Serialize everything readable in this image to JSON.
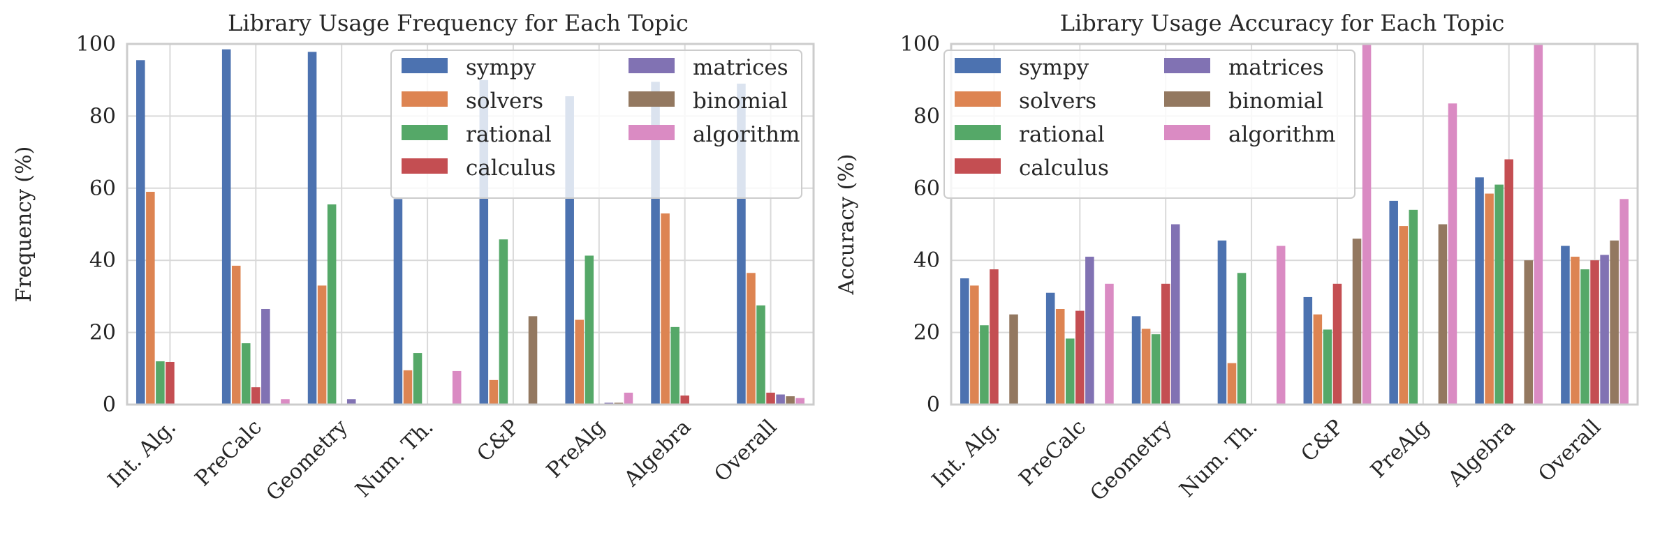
{
  "chart_data": [
    {
      "type": "bar",
      "title": "Library Usage Frequency for Each Topic",
      "xlabel": "",
      "ylabel": "Frequency (%)",
      "ylim": [
        0,
        100
      ],
      "yticks": [
        "0",
        "20",
        "40",
        "60",
        "80",
        "100"
      ],
      "grid": true,
      "legend_placement": "top-right",
      "categories": [
        "Int. Alg.",
        "PreCalc",
        "Geometry",
        "Num. Th.",
        "C&P",
        "PreAlg",
        "Algebra",
        "Overall"
      ],
      "series": [
        {
          "name": "sympy",
          "color": "#4c72b0",
          "values": [
            95.5,
            98.5,
            97.8,
            57.0,
            90.0,
            85.5,
            89.5,
            89.0
          ]
        },
        {
          "name": "solvers",
          "color": "#dd8452",
          "values": [
            59.0,
            38.5,
            33.0,
            9.5,
            6.8,
            23.5,
            53.0,
            36.5
          ]
        },
        {
          "name": "rational",
          "color": "#55a868",
          "values": [
            12.0,
            17.0,
            55.5,
            14.3,
            45.8,
            41.3,
            21.5,
            27.5
          ]
        },
        {
          "name": "calculus",
          "color": "#c44e52",
          "values": [
            11.8,
            4.8,
            0,
            0,
            0,
            0,
            2.5,
            3.3
          ]
        },
        {
          "name": "matrices",
          "color": "#8172b3",
          "values": [
            0,
            26.5,
            1.5,
            0,
            0,
            0.5,
            0,
            2.8
          ]
        },
        {
          "name": "binomial",
          "color": "#937860",
          "values": [
            0,
            0,
            0,
            0,
            24.5,
            0.5,
            0,
            2.3
          ]
        },
        {
          "name": "algorithm",
          "color": "#da8bc3",
          "values": [
            0,
            1.5,
            0,
            9.3,
            0,
            3.3,
            0,
            1.8
          ]
        }
      ]
    },
    {
      "type": "bar",
      "title": "Library Usage Accuracy for Each Topic",
      "xlabel": "",
      "ylabel": "Accuracy (%)",
      "ylim": [
        0,
        100
      ],
      "yticks": [
        "0",
        "20",
        "40",
        "60",
        "80",
        "100"
      ],
      "grid": true,
      "legend_placement": "top-left",
      "categories": [
        "Int. Alg.",
        "PreCalc",
        "Geometry",
        "Num. Th.",
        "C&P",
        "PreAlg",
        "Algebra",
        "Overall"
      ],
      "series": [
        {
          "name": "sympy",
          "color": "#4c72b0",
          "values": [
            35.0,
            31.0,
            24.5,
            45.5,
            29.8,
            56.5,
            63.0,
            44.0
          ]
        },
        {
          "name": "solvers",
          "color": "#dd8452",
          "values": [
            33.0,
            26.5,
            21.0,
            11.5,
            25.0,
            49.5,
            58.5,
            41.0
          ]
        },
        {
          "name": "rational",
          "color": "#55a868",
          "values": [
            22.0,
            18.3,
            19.5,
            36.5,
            20.8,
            54.0,
            61.0,
            37.5
          ]
        },
        {
          "name": "calculus",
          "color": "#c44e52",
          "values": [
            37.5,
            26.0,
            33.5,
            0,
            33.5,
            0,
            68.0,
            40.0
          ]
        },
        {
          "name": "matrices",
          "color": "#8172b3",
          "values": [
            0,
            41.0,
            50.0,
            0,
            0,
            0,
            0,
            41.5
          ]
        },
        {
          "name": "binomial",
          "color": "#937860",
          "values": [
            25.0,
            0,
            0,
            0,
            46.0,
            50.0,
            40.0,
            45.5
          ]
        },
        {
          "name": "algorithm",
          "color": "#da8bc3",
          "values": [
            0,
            33.5,
            0,
            44.0,
            100.0,
            83.5,
            100.0,
            57.0
          ]
        }
      ]
    }
  ]
}
